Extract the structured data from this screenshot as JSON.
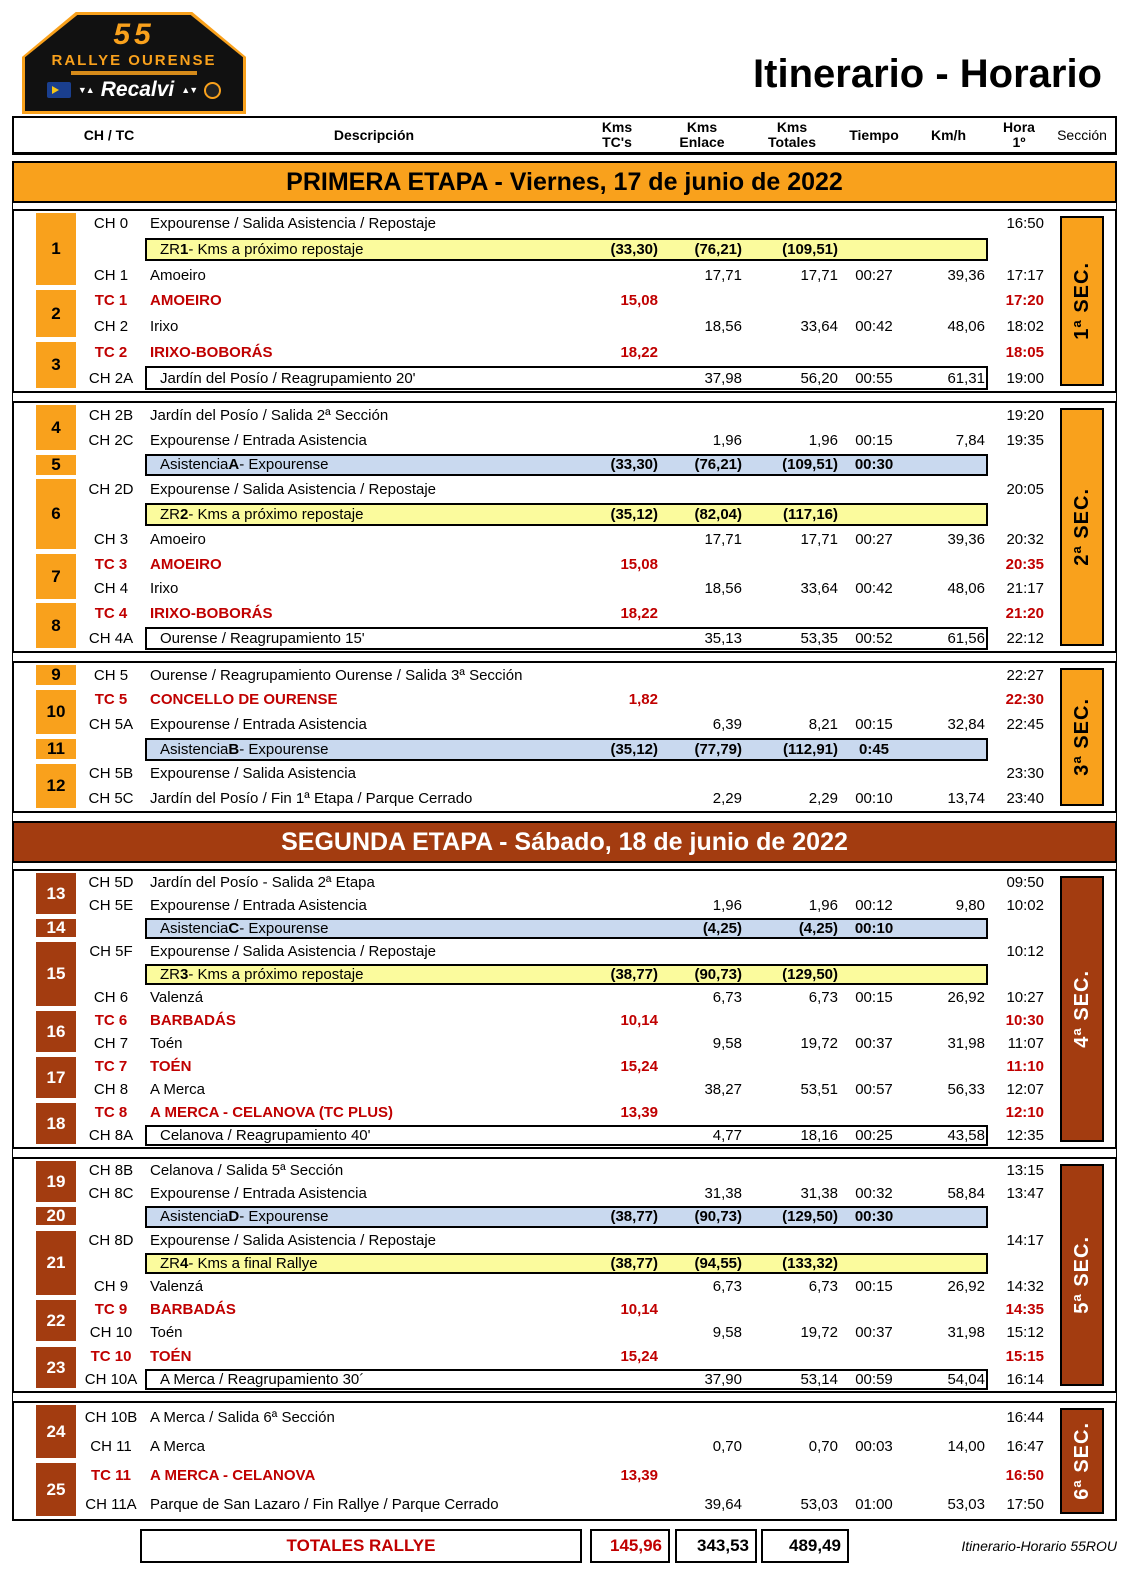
{
  "logo": {
    "number": "55",
    "name": "RALLYE OURENSE",
    "sponsor": "Recalvi"
  },
  "title": "Itinerario - Horario",
  "columns": {
    "ch_tc": "CH / TC",
    "descripcion": "Descripción",
    "kms_tcs": [
      "Kms",
      "TC's"
    ],
    "kms_enlace": [
      "Kms",
      "Enlace"
    ],
    "kms_totales": [
      "Kms",
      "Totales"
    ],
    "tiempo": "Tiempo",
    "kmh": "Km/h",
    "hora": [
      "Hora",
      "1º"
    ],
    "seccion": "Sección"
  },
  "colors": {
    "orange": "#F9A11C",
    "brick": "#A33C10",
    "zr": "#FBFB9D",
    "asist": "#C9D9EF",
    "red": "#C00000"
  },
  "etapas": [
    {
      "banner": "PRIMERA ETAPA - Viernes, 17 de junio de 2022",
      "theme": "orange",
      "sections": [
        {
          "label": "1ª SEC.",
          "rows": [
            {
              "num": "1",
              "span": 3,
              "label": "CH 0",
              "desc": "Expourense / Salida Asistencia / Repostaje",
              "hora": "16:50"
            },
            {
              "type": "zr",
              "d": {
                "pre": "ZR",
                "bold": "1",
                "rest": " - Kms a próximo repostaje"
              },
              "tcs": "(33,30)",
              "enlace": "(76,21)",
              "totales": "(109,51)"
            },
            {
              "label": "CH 1",
              "desc": "Amoeiro",
              "enlace": "17,71",
              "totales": "17,71",
              "tiempo": "00:27",
              "kmh": "39,36",
              "hora": "17:17"
            },
            {
              "num": "2",
              "span": 2,
              "type": "tc",
              "label": "TC 1",
              "desc": "AMOEIRO",
              "tcs": "15,08",
              "hora": "17:20"
            },
            {
              "label": "CH 2",
              "desc": "Irixo",
              "enlace": "18,56",
              "totales": "33,64",
              "tiempo": "00:42",
              "kmh": "48,06",
              "hora": "18:02"
            },
            {
              "num": "3",
              "span": 2,
              "type": "tc",
              "label": "TC 2",
              "desc": "IRIXO-BOBORÁS",
              "tcs": "18,22",
              "hora": "18:05"
            },
            {
              "type": "reagrup",
              "label": "CH 2A",
              "desc": "Jardín del Posío / Reagrupamiento 20'",
              "enlace": "37,98",
              "totales": "56,20",
              "tiempo": "00:55",
              "kmh": "61,31",
              "hora": "19:00"
            }
          ]
        },
        {
          "label": "2ª SEC.",
          "rows": [
            {
              "num": "4",
              "span": 2,
              "label": "CH 2B",
              "desc": "Jardín del Posío / Salida 2ª Sección",
              "hora": "19:20"
            },
            {
              "label": "CH 2C",
              "desc": "Expourense / Entrada Asistencia",
              "enlace": "1,96",
              "totales": "1,96",
              "tiempo": "00:15",
              "kmh": "7,84",
              "hora": "19:35"
            },
            {
              "num": "5",
              "span": 1,
              "type": "asist",
              "d": {
                "pre": "Asistencia",
                "bold": "A",
                "rest": " - Expourense"
              },
              "tcs": "(33,30)",
              "enlace": "(76,21)",
              "totales": "(109,51)",
              "tiempo": "00:30"
            },
            {
              "num": "6",
              "span": 3,
              "label": "CH 2D",
              "desc": "Expourense / Salida Asistencia / Repostaje",
              "hora": "20:05"
            },
            {
              "type": "zr",
              "d": {
                "pre": "ZR",
                "bold": "2",
                "rest": " - Kms a próximo repostaje"
              },
              "tcs": "(35,12)",
              "enlace": "(82,04)",
              "totales": "(117,16)"
            },
            {
              "label": "CH 3",
              "desc": "Amoeiro",
              "enlace": "17,71",
              "totales": "17,71",
              "tiempo": "00:27",
              "kmh": "39,36",
              "hora": "20:32"
            },
            {
              "num": "7",
              "span": 2,
              "type": "tc",
              "label": "TC 3",
              "desc": "AMOEIRO",
              "tcs": "15,08",
              "hora": "20:35"
            },
            {
              "label": "CH 4",
              "desc": "Irixo",
              "enlace": "18,56",
              "totales": "33,64",
              "tiempo": "00:42",
              "kmh": "48,06",
              "hora": "21:17"
            },
            {
              "num": "8",
              "span": 2,
              "type": "tc",
              "label": "TC 4",
              "desc": "IRIXO-BOBORÁS",
              "tcs": "18,22",
              "hora": "21:20"
            },
            {
              "type": "reagrup",
              "label": "CH 4A",
              "desc": "Ourense / Reagrupamiento 15'",
              "enlace": "35,13",
              "totales": "53,35",
              "tiempo": "00:52",
              "kmh": "61,56",
              "hora": "22:12"
            }
          ]
        },
        {
          "label": "3ª SEC.",
          "rows": [
            {
              "num": "9",
              "span": 1,
              "label": "CH 5",
              "desc": "Ourense / Reagrupamiento Ourense / Salida 3ª Sección",
              "hora": "22:27"
            },
            {
              "num": "10",
              "span": 2,
              "type": "tc",
              "label": "TC 5",
              "desc": "CONCELLO DE OURENSE",
              "tcs": "1,82",
              "hora": "22:30"
            },
            {
              "label": "CH 5A",
              "desc": "Expourense / Entrada Asistencia",
              "enlace": "6,39",
              "totales": "8,21",
              "tiempo": "00:15",
              "kmh": "32,84",
              "hora": "22:45"
            },
            {
              "num": "11",
              "span": 1,
              "type": "asist",
              "d": {
                "pre": "Asistencia",
                "bold": "B",
                "rest": " - Expourense"
              },
              "tcs": "(35,12)",
              "enlace": "(77,79)",
              "totales": "(112,91)",
              "tiempo": "0:45"
            },
            {
              "num": "12",
              "span": 2,
              "label": "CH 5B",
              "desc": "Expourense / Salida Asistencia",
              "hora": "23:30"
            },
            {
              "label": "CH 5C",
              "desc": "Jardín del Posío / Fin 1ª Etapa / Parque Cerrado",
              "enlace": "2,29",
              "totales": "2,29",
              "tiempo": "00:10",
              "kmh": "13,74",
              "hora": "23:40"
            }
          ]
        }
      ]
    },
    {
      "banner": "SEGUNDA ETAPA - Sábado, 18 de junio de 2022",
      "theme": "brick",
      "sections": [
        {
          "label": "4ª SEC.",
          "rows": [
            {
              "num": "13",
              "span": 2,
              "label": "CH 5D",
              "desc": "Jardín del Posío - Salida 2ª Etapa",
              "hora": "09:50"
            },
            {
              "label": "CH 5E",
              "desc": "Expourense / Entrada Asistencia",
              "enlace": "1,96",
              "totales": "1,96",
              "tiempo": "00:12",
              "kmh": "9,80",
              "hora": "10:02"
            },
            {
              "num": "14",
              "span": 1,
              "type": "asist",
              "d": {
                "pre": "Asistencia",
                "bold": "C",
                "rest": " - Expourense"
              },
              "enlace": "(4,25)",
              "totales": "(4,25)",
              "tiempo": "00:10"
            },
            {
              "num": "15",
              "span": 3,
              "label": "CH 5F",
              "desc": "Expourense / Salida Asistencia / Repostaje",
              "hora": "10:12"
            },
            {
              "type": "zr",
              "d": {
                "pre": "ZR",
                "bold": "3",
                "rest": " - Kms a próximo repostaje"
              },
              "tcs": "(38,77)",
              "enlace": "(90,73)",
              "totales": "(129,50)"
            },
            {
              "label": "CH 6",
              "desc": "Valenzá",
              "enlace": "6,73",
              "totales": "6,73",
              "tiempo": "00:15",
              "kmh": "26,92",
              "hora": "10:27"
            },
            {
              "num": "16",
              "span": 2,
              "type": "tc",
              "label": "TC 6",
              "desc": "BARBADÁS",
              "tcs": "10,14",
              "hora": "10:30"
            },
            {
              "label": "CH 7",
              "desc": "Toén",
              "enlace": "9,58",
              "totales": "19,72",
              "tiempo": "00:37",
              "kmh": "31,98",
              "hora": "11:07"
            },
            {
              "num": "17",
              "span": 2,
              "type": "tc",
              "label": "TC 7",
              "desc": "TOÉN",
              "tcs": "15,24",
              "hora": "11:10"
            },
            {
              "label": "CH 8",
              "desc": "A Merca",
              "enlace": "38,27",
              "totales": "53,51",
              "tiempo": "00:57",
              "kmh": "56,33",
              "hora": "12:07"
            },
            {
              "num": "18",
              "span": 2,
              "type": "tc",
              "label": "TC 8",
              "desc": "A MERCA - CELANOVA (TC PLUS)",
              "tcs": "13,39",
              "hora": "12:10"
            },
            {
              "type": "reagrup",
              "label": "CH 8A",
              "desc": "Celanova / Reagrupamiento 40'",
              "enlace": "4,77",
              "totales": "18,16",
              "tiempo": "00:25",
              "kmh": "43,58",
              "hora": "12:35"
            }
          ]
        },
        {
          "label": "5ª SEC.",
          "rows": [
            {
              "num": "19",
              "span": 2,
              "label": "CH 8B",
              "desc": "Celanova / Salida 5ª Sección",
              "hora": "13:15"
            },
            {
              "label": "CH 8C",
              "desc": "Expourense / Entrada Asistencia",
              "enlace": "31,38",
              "totales": "31,38",
              "tiempo": "00:32",
              "kmh": "58,84",
              "hora": "13:47"
            },
            {
              "num": "20",
              "span": 1,
              "type": "asist",
              "d": {
                "pre": "Asistencia",
                "bold": "D",
                "rest": " - Expourense"
              },
              "tcs": "(38,77)",
              "enlace": "(90,73)",
              "totales": "(129,50)",
              "tiempo": "00:30"
            },
            {
              "num": "21",
              "span": 3,
              "label": "CH 8D",
              "desc": "Expourense / Salida Asistencia / Repostaje",
              "hora": "14:17"
            },
            {
              "type": "zr",
              "d": {
                "pre": "ZR",
                "bold": "4",
                "rest": " - Kms a final Rallye"
              },
              "tcs": "(38,77)",
              "enlace": "(94,55)",
              "totales": "(133,32)"
            },
            {
              "label": "CH 9",
              "desc": "Valenzá",
              "enlace": "6,73",
              "totales": "6,73",
              "tiempo": "00:15",
              "kmh": "26,92",
              "hora": "14:32"
            },
            {
              "num": "22",
              "span": 2,
              "type": "tc",
              "label": "TC 9",
              "desc": "BARBADÁS",
              "tcs": "10,14",
              "hora": "14:35"
            },
            {
              "label": "CH 10",
              "desc": "Toén",
              "enlace": "9,58",
              "totales": "19,72",
              "tiempo": "00:37",
              "kmh": "31,98",
              "hora": "15:12"
            },
            {
              "num": "23",
              "span": 2,
              "type": "tc",
              "label": "TC 10",
              "desc": "TOÉN",
              "tcs": "15,24",
              "hora": "15:15"
            },
            {
              "type": "reagrup",
              "label": "CH 10A",
              "desc": "A Merca / Reagrupamiento 30´",
              "enlace": "37,90",
              "totales": "53,14",
              "tiempo": "00:59",
              "kmh": "54,04",
              "hora": "16:14"
            }
          ]
        },
        {
          "label": "6ª SEC.",
          "rows": [
            {
              "num": "24",
              "span": 2,
              "label": "CH 10B",
              "desc": "A Merca / Salida 6ª Sección",
              "hora": "16:44"
            },
            {
              "label": "CH 11",
              "desc": "A Merca",
              "enlace": "0,70",
              "totales": "0,70",
              "tiempo": "00:03",
              "kmh": "14,00",
              "hora": "16:47"
            },
            {
              "num": "25",
              "span": 2,
              "type": "tc",
              "label": "TC 11",
              "desc": "A MERCA - CELANOVA",
              "tcs": "13,39",
              "hora": "16:50"
            },
            {
              "label": "CH 11A",
              "desc": "Parque de San Lazaro / Fin Rallye / Parque Cerrado",
              "enlace": "39,64",
              "totales": "53,03",
              "tiempo": "01:00",
              "kmh": "53,03",
              "hora": "17:50"
            }
          ]
        }
      ]
    }
  ],
  "totals": {
    "label": "TOTALES RALLYE",
    "tcs": "145,96",
    "enlace": "343,53",
    "totales": "489,49"
  },
  "footer": "Itinerario-Horario 55ROU"
}
